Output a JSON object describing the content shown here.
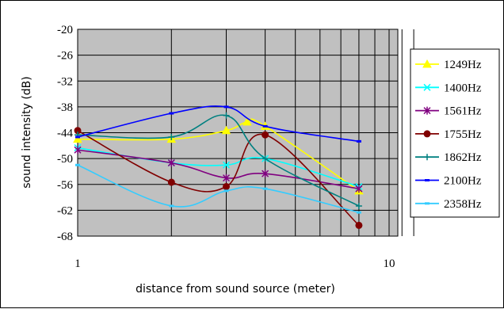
{
  "chart_data": {
    "type": "line",
    "xlabel": "distance from sound source (meter)",
    "ylabel": "sound intensity (dB)",
    "xscale": "log",
    "xlim": [
      1,
      12
    ],
    "ylim": [
      -68,
      -20
    ],
    "yticks": [
      -20,
      -26,
      -32,
      -38,
      -44,
      -50,
      -56,
      -62,
      -68
    ],
    "xtick_labels": [
      {
        "value": 1,
        "label": "1"
      },
      {
        "value": 10,
        "label": "10"
      }
    ],
    "grid": true,
    "plot_background": "#c0c0c0",
    "legend_position": "right",
    "series": [
      {
        "name": "1249Hz",
        "color": "#ffff00",
        "marker": "triangle",
        "x": [
          1,
          2,
          3,
          3.5,
          4,
          8
        ],
        "y": [
          -45.5,
          -45.5,
          -43.5,
          -41.5,
          -42.5,
          -57.5
        ]
      },
      {
        "name": "1400Hz",
        "color": "#00ffff",
        "marker": "x",
        "x": [
          1,
          2,
          3,
          4,
          8
        ],
        "y": [
          -47.5,
          -51,
          -51.5,
          -50,
          -56.5
        ]
      },
      {
        "name": "1561Hz",
        "color": "#800080",
        "marker": "asterisk",
        "x": [
          1,
          2,
          3,
          4,
          8
        ],
        "y": [
          -48,
          -51,
          -54.5,
          -53.5,
          -57
        ]
      },
      {
        "name": "1755Hz",
        "color": "#800000",
        "marker": "circle",
        "x": [
          1,
          2,
          3,
          4,
          8
        ],
        "y": [
          -43.5,
          -55.5,
          -56.5,
          -44.5,
          -65.5
        ]
      },
      {
        "name": "1862Hz",
        "color": "#008080",
        "marker": "plus",
        "x": [
          1,
          2,
          3,
          4,
          8
        ],
        "y": [
          -44.5,
          -45,
          -40,
          -50,
          -61
        ]
      },
      {
        "name": "2100Hz",
        "color": "#0000ff",
        "marker": "dash",
        "x": [
          1,
          2,
          3,
          4,
          8
        ],
        "y": [
          -45,
          -39.5,
          -38,
          -42.5,
          -46
        ]
      },
      {
        "name": "2358Hz",
        "color": "#33ccff",
        "marker": "dash",
        "x": [
          1,
          2,
          3,
          4,
          8
        ],
        "y": [
          -51.5,
          -61,
          -57.5,
          -57,
          -62.5
        ]
      }
    ]
  }
}
